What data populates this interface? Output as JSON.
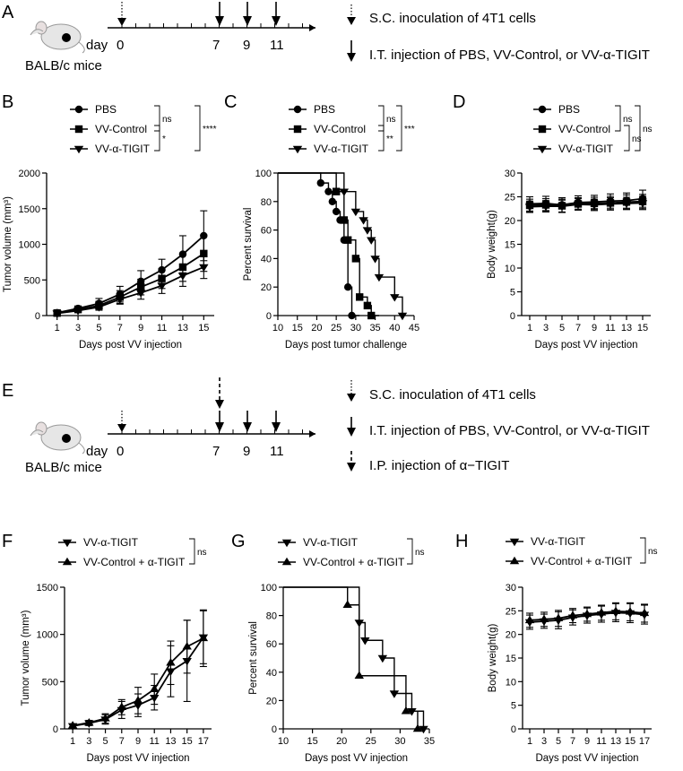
{
  "panels": {
    "A": "A",
    "B": "B",
    "C": "C",
    "D": "D",
    "E": "E",
    "F": "F",
    "G": "G",
    "H": "H"
  },
  "schedule_A": {
    "day_prefix": "day",
    "days": [
      "0",
      "7",
      "9",
      "11"
    ],
    "mouse_label": "BALB/c mice",
    "legend": [
      {
        "arrow": "dotted",
        "text": "S.C.  inoculation of 4T1 cells"
      },
      {
        "arrow": "solid",
        "text": "I.T. injection of PBS, VV-Control, or VV-α-TIGIT"
      }
    ]
  },
  "schedule_E": {
    "day_prefix": "day",
    "days": [
      "0",
      "7",
      "9",
      "11"
    ],
    "mouse_label": "BALB/c mice",
    "legend": [
      {
        "arrow": "dotted",
        "text": "S.C.  inoculation of 4T1 cells"
      },
      {
        "arrow": "solid",
        "text": "I.T. injection of PBS, VV-Control, or VV-α-TIGIT"
      },
      {
        "arrow": "dashed",
        "text": "I.P. injection of α−TIGIT"
      }
    ]
  },
  "significance": {
    "B": [
      "ns",
      "*",
      "****"
    ],
    "C": [
      "ns",
      "**",
      "***"
    ],
    "D": [
      "ns",
      "ns",
      "ns"
    ],
    "F": [
      "ns"
    ],
    "G": [
      "ns"
    ],
    "H": [
      "ns"
    ]
  },
  "chart_data": [
    {
      "id": "B",
      "type": "line",
      "title": "",
      "xlabel": "Days post VV injection",
      "ylabel": "Tumor volume (mm³)",
      "xlim": [
        0,
        16
      ],
      "ylim": [
        0,
        2000
      ],
      "xticks": [
        1,
        3,
        5,
        7,
        9,
        11,
        13,
        15
      ],
      "yticks": [
        0,
        500,
        1000,
        1500,
        2000
      ],
      "x": [
        1,
        3,
        5,
        7,
        9,
        11,
        13,
        15
      ],
      "series": [
        {
          "name": "PBS",
          "marker": "circle",
          "values": [
            40,
            100,
            170,
            300,
            480,
            640,
            860,
            1120
          ],
          "errors": [
            15,
            35,
            70,
            110,
            150,
            150,
            260,
            350
          ]
        },
        {
          "name": "VV-Control",
          "marker": "square",
          "values": [
            35,
            85,
            140,
            260,
            400,
            520,
            680,
            870
          ],
          "errors": [
            15,
            30,
            60,
            90,
            110,
            140,
            200,
            250
          ]
        },
        {
          "name": "VV-α-TIGIT",
          "marker": "triangle-down",
          "values": [
            30,
            70,
            120,
            230,
            320,
            420,
            560,
            680
          ],
          "errors": [
            12,
            25,
            45,
            70,
            90,
            110,
            150,
            160
          ]
        }
      ]
    },
    {
      "id": "C",
      "type": "line",
      "title": "",
      "xlabel": "Days post tumor challenge",
      "ylabel": "Percent survival",
      "xlim": [
        10,
        45
      ],
      "ylim": [
        0,
        100
      ],
      "xticks": [
        10,
        15,
        20,
        25,
        30,
        35,
        40,
        45
      ],
      "yticks": [
        0,
        20,
        40,
        60,
        80,
        100
      ],
      "series": [
        {
          "name": "PBS",
          "marker": "circle",
          "steps": [
            [
              10,
              100
            ],
            [
              21,
              100
            ],
            [
              21,
              93
            ],
            [
              23,
              93
            ],
            [
              23,
              87
            ],
            [
              24,
              87
            ],
            [
              24,
              80
            ],
            [
              25,
              80
            ],
            [
              25,
              73
            ],
            [
              26,
              73
            ],
            [
              26,
              67
            ],
            [
              27,
              67
            ],
            [
              27,
              53
            ],
            [
              28,
              53
            ],
            [
              28,
              20
            ],
            [
              29,
              20
            ],
            [
              29,
              0
            ],
            [
              31,
              0
            ]
          ],
          "points": [
            [
              21,
              93
            ],
            [
              23,
              87
            ],
            [
              24,
              80
            ],
            [
              25,
              73
            ],
            [
              26,
              67
            ],
            [
              27,
              53
            ],
            [
              28,
              20
            ],
            [
              29,
              0
            ]
          ]
        },
        {
          "name": "VV-Control",
          "marker": "square",
          "steps": [
            [
              10,
              100
            ],
            [
              25,
              100
            ],
            [
              25,
              87
            ],
            [
              27,
              87
            ],
            [
              27,
              67
            ],
            [
              28,
              67
            ],
            [
              28,
              53
            ],
            [
              30,
              53
            ],
            [
              30,
              40
            ],
            [
              31,
              40
            ],
            [
              31,
              13
            ],
            [
              33,
              13
            ],
            [
              33,
              7
            ],
            [
              34,
              7
            ],
            [
              34,
              0
            ],
            [
              36,
              0
            ]
          ],
          "points": [
            [
              25,
              87
            ],
            [
              27,
              67
            ],
            [
              28,
              53
            ],
            [
              30,
              40
            ],
            [
              31,
              13
            ],
            [
              33,
              7
            ],
            [
              34,
              0
            ]
          ]
        },
        {
          "name": "VV-α-TIGIT",
          "marker": "triangle-down",
          "steps": [
            [
              10,
              100
            ],
            [
              27,
              100
            ],
            [
              27,
              87
            ],
            [
              30,
              87
            ],
            [
              30,
              73
            ],
            [
              32,
              73
            ],
            [
              32,
              67
            ],
            [
              33,
              67
            ],
            [
              33,
              60
            ],
            [
              34,
              60
            ],
            [
              34,
              53
            ],
            [
              35,
              53
            ],
            [
              35,
              40
            ],
            [
              36,
              40
            ],
            [
              36,
              27
            ],
            [
              40,
              27
            ],
            [
              40,
              13
            ],
            [
              42,
              13
            ],
            [
              42,
              0
            ]
          ],
          "points": [
            [
              27,
              87
            ],
            [
              30,
              73
            ],
            [
              32,
              67
            ],
            [
              33,
              60
            ],
            [
              34,
              53
            ],
            [
              35,
              40
            ],
            [
              36,
              27
            ],
            [
              40,
              13
            ],
            [
              42,
              0
            ]
          ]
        }
      ]
    },
    {
      "id": "D",
      "type": "line",
      "title": "",
      "xlabel": "Days post VV injection",
      "ylabel": "Body weight(g)",
      "xlim": [
        0,
        16
      ],
      "ylim": [
        0,
        30
      ],
      "xticks": [
        1,
        3,
        5,
        7,
        9,
        11,
        13,
        15
      ],
      "yticks": [
        0,
        5,
        10,
        15,
        20,
        25,
        30
      ],
      "x": [
        1,
        3,
        5,
        7,
        9,
        11,
        13,
        15
      ],
      "series": [
        {
          "name": "PBS",
          "marker": "circle",
          "values": [
            23.5,
            23.6,
            23.3,
            23.8,
            23.9,
            24.1,
            24.2,
            24.6
          ],
          "errors": [
            1.5,
            1.5,
            1.5,
            1.4,
            1.4,
            1.5,
            1.6,
            1.8
          ]
        },
        {
          "name": "VV-Control",
          "marker": "square",
          "values": [
            23.2,
            23.3,
            23.1,
            23.5,
            23.6,
            23.7,
            23.9,
            24.0
          ],
          "errors": [
            1.3,
            1.3,
            1.4,
            1.3,
            1.3,
            1.4,
            1.5,
            1.5
          ]
        },
        {
          "name": "VV-α-TIGIT",
          "marker": "triangle-down",
          "values": [
            22.9,
            23.0,
            23.0,
            23.4,
            23.3,
            23.5,
            23.6,
            23.7
          ],
          "errors": [
            1.2,
            1.2,
            1.3,
            1.2,
            1.2,
            1.3,
            1.3,
            1.4
          ]
        }
      ]
    },
    {
      "id": "F",
      "type": "line",
      "title": "",
      "xlabel": "Days post VV injection",
      "ylabel": "Tumor volume (mm³)",
      "xlim": [
        0,
        18
      ],
      "ylim": [
        0,
        1500
      ],
      "xticks": [
        1,
        3,
        5,
        7,
        9,
        11,
        13,
        15,
        17
      ],
      "yticks": [
        0,
        500,
        1000,
        1500
      ],
      "x": [
        1,
        3,
        5,
        7,
        9,
        11,
        13,
        15,
        17
      ],
      "series": [
        {
          "name": "VV-α-TIGIT",
          "marker": "triangle-down",
          "values": [
            30,
            60,
            100,
            200,
            250,
            330,
            610,
            720,
            970
          ],
          "errors": [
            15,
            25,
            50,
            90,
            120,
            130,
            270,
            430,
            280
          ]
        },
        {
          "name": "VV-Control + α-TIGIT",
          "marker": "triangle-up",
          "values": [
            35,
            65,
            110,
            230,
            300,
            420,
            700,
            870,
            960
          ],
          "errors": [
            15,
            25,
            50,
            80,
            140,
            160,
            230,
            280,
            300
          ]
        }
      ]
    },
    {
      "id": "G",
      "type": "line",
      "title": "",
      "xlabel": "Days post VV injection",
      "ylabel": "Percent survival",
      "xlim": [
        10,
        35
      ],
      "ylim": [
        0,
        100
      ],
      "xticks": [
        10,
        15,
        20,
        25,
        30,
        35
      ],
      "yticks": [
        0,
        20,
        40,
        60,
        80,
        100
      ],
      "series": [
        {
          "name": "VV-α-TIGIT",
          "marker": "triangle-down",
          "steps": [
            [
              10,
              100
            ],
            [
              23,
              100
            ],
            [
              23,
              75
            ],
            [
              24,
              75
            ],
            [
              24,
              62.5
            ],
            [
              27,
              62.5
            ],
            [
              27,
              50
            ],
            [
              29,
              50
            ],
            [
              29,
              25
            ],
            [
              32,
              25
            ],
            [
              32,
              12.5
            ],
            [
              34,
              12.5
            ],
            [
              34,
              0
            ]
          ],
          "points": [
            [
              23,
              75
            ],
            [
              24,
              62.5
            ],
            [
              27,
              50
            ],
            [
              29,
              25
            ],
            [
              32,
              12.5
            ],
            [
              34,
              0
            ]
          ]
        },
        {
          "name": "VV-Control + α-TIGIT",
          "marker": "triangle-up",
          "steps": [
            [
              10,
              100
            ],
            [
              21,
              100
            ],
            [
              21,
              87.5
            ],
            [
              23,
              87.5
            ],
            [
              23,
              37.5
            ],
            [
              31,
              37.5
            ],
            [
              31,
              12.5
            ],
            [
              33,
              12.5
            ],
            [
              33,
              0
            ],
            [
              34,
              0
            ]
          ],
          "points": [
            [
              21,
              87.5
            ],
            [
              23,
              37.5
            ],
            [
              31,
              12.5
            ],
            [
              33,
              0
            ]
          ]
        }
      ]
    },
    {
      "id": "H",
      "type": "line",
      "title": "",
      "xlabel": "Days post VV injection",
      "ylabel": "Body weight(g)",
      "xlim": [
        0,
        18
      ],
      "ylim": [
        0,
        30
      ],
      "xticks": [
        1,
        3,
        5,
        7,
        9,
        11,
        13,
        15,
        17
      ],
      "yticks": [
        0,
        5,
        10,
        15,
        20,
        25,
        30
      ],
      "x": [
        1,
        3,
        5,
        7,
        9,
        11,
        13,
        15,
        17
      ],
      "series": [
        {
          "name": "VV-α-TIGIT",
          "marker": "triangle-down",
          "values": [
            22.6,
            22.8,
            23.0,
            23.6,
            24.0,
            24.3,
            24.6,
            24.5,
            24.2
          ],
          "errors": [
            1.5,
            1.5,
            1.8,
            1.6,
            1.6,
            1.7,
            1.9,
            2.0,
            2.0
          ]
        },
        {
          "name": "VV-Control + α-TIGIT",
          "marker": "triangle-up",
          "values": [
            23.0,
            23.2,
            23.4,
            24.0,
            24.3,
            24.6,
            24.9,
            24.8,
            24.5
          ],
          "errors": [
            1.5,
            1.5,
            1.7,
            1.5,
            1.5,
            1.6,
            1.8,
            1.9,
            1.9
          ]
        }
      ]
    }
  ]
}
